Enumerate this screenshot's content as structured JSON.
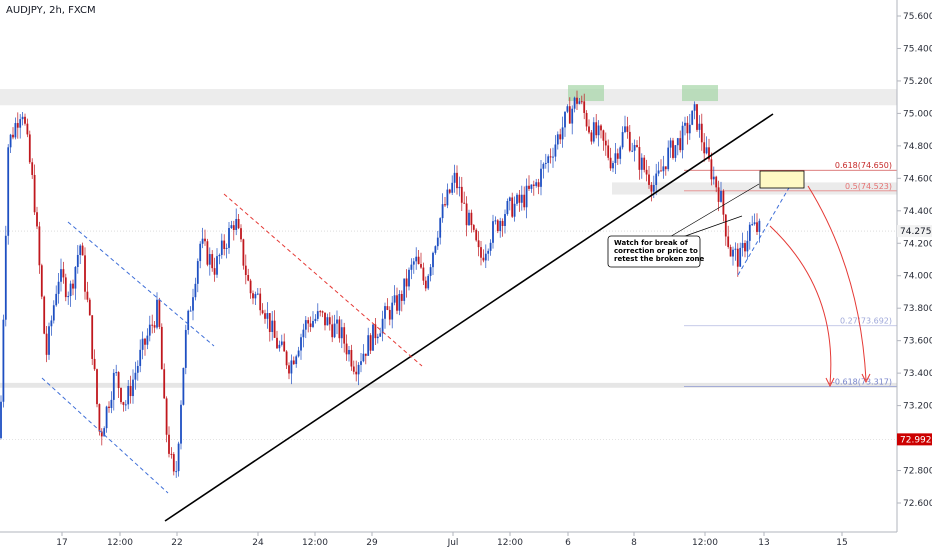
{
  "chart_data": {
    "type": "candlestick",
    "title": "AUDJPY, 2h, FXCM",
    "y_axis": {
      "range": [
        72.45,
        75.75
      ],
      "ticks": [
        "75.600",
        "75.400",
        "75.200",
        "75.000",
        "74.800",
        "74.600",
        "74.400",
        "74.200",
        "74.000",
        "73.800",
        "73.600",
        "73.400",
        "73.200",
        "73.000",
        "72.800",
        "72.600"
      ],
      "tick_values": [
        75.6,
        75.4,
        75.2,
        75.0,
        74.8,
        74.6,
        74.4,
        74.2,
        74.0,
        73.8,
        73.6,
        73.4,
        73.2,
        73.0,
        72.8,
        72.6
      ]
    },
    "x_axis": {
      "ticks": [
        "17",
        "12:00",
        "22",
        "24",
        "12:00",
        "29",
        "Jul",
        "12:00",
        "6",
        "8",
        "12:00",
        "13",
        "15"
      ]
    },
    "price_tags": [
      {
        "label": "74.275",
        "value": 74.275,
        "color": "#f2f2f2",
        "text_color": "#131722"
      },
      {
        "label": "72.992",
        "value": 72.992,
        "color": "#cc0000",
        "text_color": "#ffffff"
      }
    ],
    "fib_levels": [
      {
        "label": "0.618(74.650)",
        "value": 74.65,
        "color": "#c62828"
      },
      {
        "label": "0.5(74.523)",
        "value": 74.523,
        "color": "#e57373"
      },
      {
        "label": "0.27(73.692)",
        "value": 73.692,
        "color": "#9fa8da"
      },
      {
        "label": "-0.618(73.317)",
        "value": 73.317,
        "color": "#7986cb"
      }
    ],
    "zones": [
      {
        "name": "resistance",
        "from": 75.05,
        "to": 75.15
      },
      {
        "name": "support",
        "from": 73.31,
        "to": 73.34
      },
      {
        "name": "retest",
        "from": 74.49,
        "to": 74.57
      }
    ],
    "annotation": "Watch for break of correction or price to retest the broken zone",
    "colors": {
      "up": "#1e4fc2",
      "down": "#c0181e",
      "trend": "#000000"
    }
  }
}
